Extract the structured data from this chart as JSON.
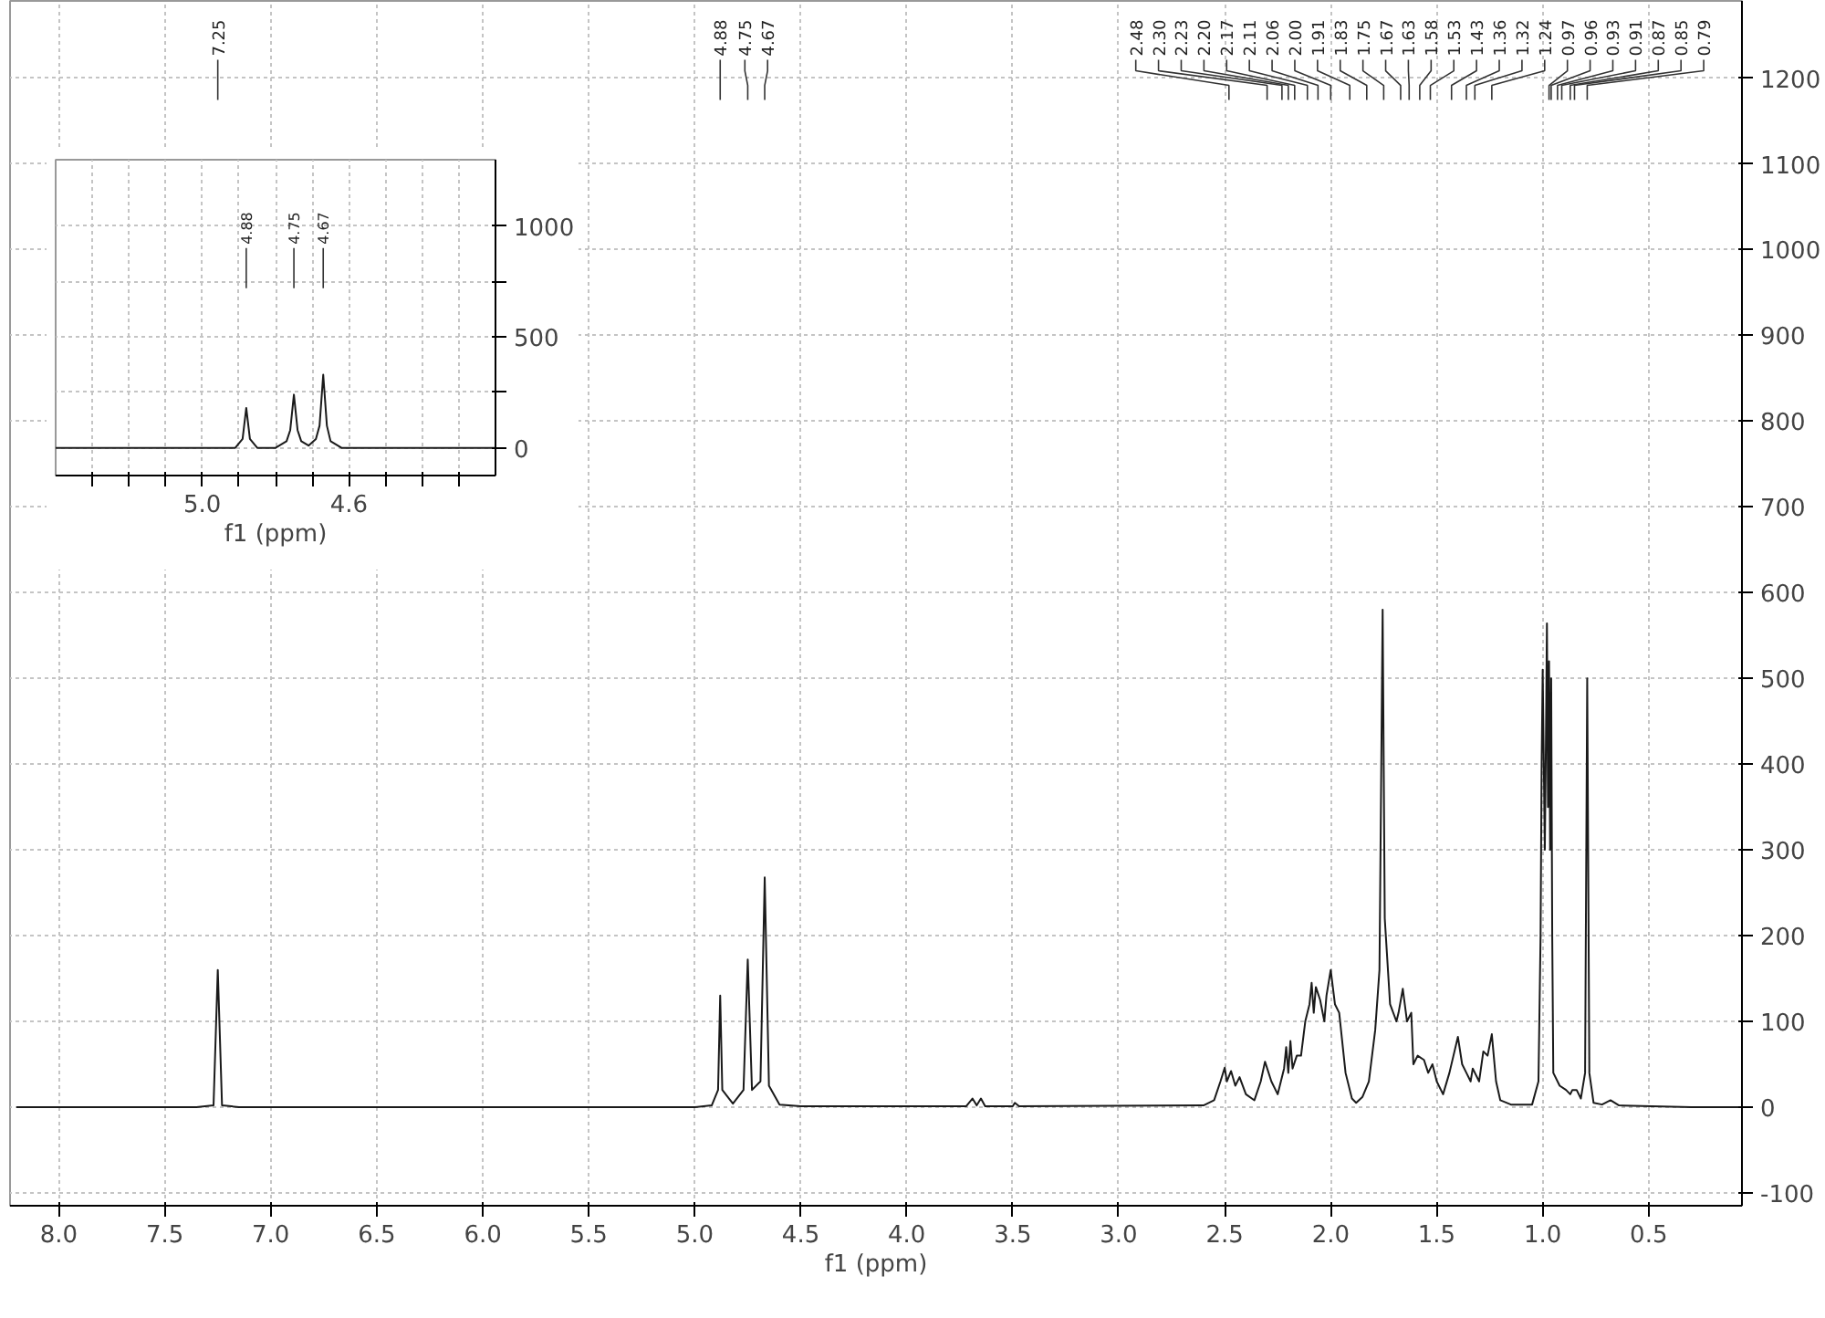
{
  "chart_data": [
    {
      "type": "line",
      "xlabel": "f1 (ppm)",
      "xlim": [
        8.23,
        0.06
      ],
      "ylim": [
        -115,
        1290
      ],
      "xticks": [
        {
          "value": 8,
          "label": "8.0"
        },
        7.5,
        {
          "value": 7,
          "label": "7.0"
        },
        6.5,
        {
          "value": 6,
          "label": "6.0"
        },
        5.5,
        {
          "value": 5,
          "label": "5.0"
        },
        4.5,
        {
          "value": 4,
          "label": "4.0"
        },
        3.5,
        {
          "value": 3,
          "label": "3.0"
        },
        2.5,
        {
          "value": 2,
          "label": "2.0"
        },
        1.5,
        {
          "value": 1,
          "label": "1.0"
        },
        0.5
      ],
      "yticks": [
        -100,
        0,
        100,
        200,
        300,
        400,
        500,
        600,
        700,
        800,
        900,
        1000,
        1100,
        1200
      ],
      "grid": true,
      "series": [
        {
          "color": "#1a1a1a",
          "x": [
            8.2,
            7.35,
            7.27,
            7.25,
            7.23,
            7.15,
            5.0,
            4.92,
            4.89,
            4.88,
            4.87,
            4.82,
            4.77,
            4.75,
            4.73,
            4.69,
            4.67,
            4.65,
            4.6,
            4.5,
            3.72,
            3.69,
            3.67,
            3.65,
            3.63,
            3.5,
            3.49,
            3.47,
            2.6,
            2.55,
            2.52,
            2.5,
            2.49,
            2.47,
            2.45,
            2.43,
            2.4,
            2.36,
            2.33,
            2.31,
            2.28,
            2.25,
            2.22,
            2.21,
            2.2,
            2.19,
            2.18,
            2.16,
            2.14,
            2.12,
            2.1,
            2.09,
            2.08,
            2.07,
            2.05,
            2.03,
            2.02,
            2.0,
            1.98,
            1.96,
            1.93,
            1.9,
            1.88,
            1.85,
            1.82,
            1.79,
            1.77,
            1.755,
            1.745,
            1.72,
            1.69,
            1.68,
            1.66,
            1.64,
            1.62,
            1.61,
            1.59,
            1.56,
            1.54,
            1.52,
            1.5,
            1.47,
            1.44,
            1.4,
            1.38,
            1.36,
            1.34,
            1.33,
            1.3,
            1.28,
            1.26,
            1.24,
            1.22,
            1.2,
            1.15,
            1.05,
            1.02,
            1.01,
            1.005,
            1.0,
            0.99,
            0.985,
            0.98,
            0.975,
            0.97,
            0.965,
            0.96,
            0.955,
            0.95,
            0.92,
            0.89,
            0.87,
            0.86,
            0.84,
            0.82,
            0.8,
            0.79,
            0.78,
            0.76,
            0.72,
            0.68,
            0.64,
            0.3,
            0.06
          ],
          "values": [
            0,
            0,
            2,
            160,
            2,
            0,
            0,
            2,
            20,
            130,
            20,
            4,
            20,
            172,
            20,
            30,
            268,
            25,
            3,
            1,
            1,
            10,
            2,
            10,
            1,
            1,
            5,
            1,
            2,
            8,
            30,
            46,
            30,
            42,
            25,
            35,
            15,
            8,
            30,
            53,
            30,
            15,
            45,
            70,
            40,
            77,
            45,
            60,
            60,
            100,
            120,
            145,
            110,
            140,
            125,
            100,
            130,
            160,
            120,
            110,
            40,
            10,
            5,
            12,
            30,
            90,
            160,
            580,
            220,
            120,
            100,
            110,
            138,
            100,
            110,
            50,
            60,
            55,
            40,
            50,
            30,
            15,
            40,
            82,
            50,
            40,
            30,
            45,
            30,
            65,
            60,
            85,
            30,
            8,
            3,
            3,
            30,
            200,
            400,
            510,
            300,
            420,
            564,
            350,
            520,
            300,
            500,
            200,
            40,
            25,
            20,
            15,
            20,
            20,
            10,
            40,
            500,
            40,
            5,
            3,
            8,
            2,
            0,
            0
          ]
        }
      ],
      "annotations": [
        "7.25",
        "4.88",
        "4.75",
        "4.67",
        "2.48",
        "2.30",
        "2.23",
        "2.20",
        "2.17",
        "2.11",
        "2.06",
        "2.00",
        "1.91",
        "1.83",
        "1.75",
        "1.67",
        "1.63",
        "1.58",
        "1.53",
        "1.43",
        "1.36",
        "1.32",
        "1.24",
        "0.97",
        "0.96",
        "0.93",
        "0.91",
        "0.87",
        "0.85",
        "0.79"
      ]
    },
    {
      "type": "line",
      "xlabel": "f1 (ppm)",
      "xlim": [
        5.4,
        4.2
      ],
      "ylim": [
        -125,
        1300
      ],
      "xticks": [
        {
          "value": 5.3,
          "label": null
        },
        {
          "value": 5.2,
          "label": null
        },
        {
          "value": 5.1,
          "label": null
        },
        {
          "value": 5,
          "label": "5.0"
        },
        {
          "value": 4.9,
          "label": null
        },
        {
          "value": 4.8,
          "label": null
        },
        {
          "value": 4.7,
          "label": null
        },
        4.6,
        {
          "value": 4.5,
          "label": null
        },
        {
          "value": 4.4,
          "label": null
        },
        {
          "value": 4.3,
          "label": null
        }
      ],
      "yticks": [
        0,
        {
          "value": 250,
          "label": null
        },
        500,
        {
          "value": 750,
          "label": null
        },
        1000
      ],
      "grid": true,
      "series": [
        {
          "color": "#1a1a1a",
          "x": [
            5.4,
            4.95,
            4.91,
            4.89,
            4.88,
            4.87,
            4.85,
            4.8,
            4.77,
            4.76,
            4.75,
            4.74,
            4.73,
            4.71,
            4.69,
            4.68,
            4.67,
            4.66,
            4.65,
            4.62,
            4.2
          ],
          "values": [
            0,
            0,
            0,
            40,
            180,
            40,
            0,
            0,
            30,
            80,
            240,
            80,
            30,
            10,
            40,
            100,
            330,
            100,
            30,
            0,
            0
          ]
        }
      ],
      "annotations": [
        "4.88",
        "4.75",
        "4.67"
      ]
    }
  ]
}
